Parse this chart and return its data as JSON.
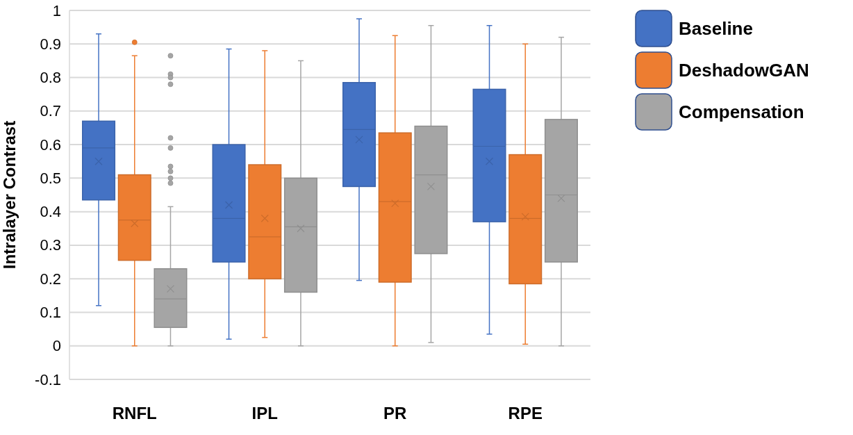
{
  "chart_data": {
    "type": "box",
    "ylabel": "Intralayer Contrast",
    "categories": [
      "RNFL",
      "IPL",
      "PR",
      "RPE"
    ],
    "ylim": [
      -0.1,
      1
    ],
    "yticks": [
      -0.1,
      0,
      0.1,
      0.2,
      0.3,
      0.4,
      0.5,
      0.6,
      0.7,
      0.8,
      0.9,
      1
    ],
    "grid": "y",
    "legend": "right",
    "series": [
      {
        "name": "Baseline",
        "color": "#4472c4",
        "boxes": [
          {
            "low": 0.12,
            "q1": 0.435,
            "median": 0.59,
            "q3": 0.67,
            "high": 0.93,
            "mean": 0.55
          },
          {
            "low": 0.02,
            "q1": 0.25,
            "median": 0.38,
            "q3": 0.6,
            "high": 0.885,
            "mean": 0.42
          },
          {
            "low": 0.195,
            "q1": 0.475,
            "median": 0.645,
            "q3": 0.785,
            "high": 0.975,
            "mean": 0.615
          },
          {
            "low": 0.035,
            "q1": 0.37,
            "median": 0.595,
            "q3": 0.765,
            "high": 0.955,
            "mean": 0.55
          }
        ]
      },
      {
        "name": "DeshadowGAN",
        "color": "#ed7d31",
        "boxes": [
          {
            "low": 0,
            "q1": 0.255,
            "median": 0.375,
            "q3": 0.51,
            "high": 0.865,
            "mean": 0.365,
            "outliers": [
              0.905
            ]
          },
          {
            "low": 0.025,
            "q1": 0.2,
            "median": 0.325,
            "q3": 0.54,
            "high": 0.88,
            "mean": 0.38
          },
          {
            "low": 0,
            "q1": 0.19,
            "median": 0.43,
            "q3": 0.635,
            "high": 0.925,
            "mean": 0.425
          },
          {
            "low": 0.005,
            "q1": 0.185,
            "median": 0.38,
            "q3": 0.57,
            "high": 0.9,
            "mean": 0.385
          }
        ]
      },
      {
        "name": "Compensation",
        "color": "#a5a5a5",
        "boxes": [
          {
            "low": 0,
            "q1": 0.055,
            "median": 0.14,
            "q3": 0.23,
            "high": 0.415,
            "mean": 0.17,
            "outliers": [
              0.865,
              0.81,
              0.8,
              0.78,
              0.62,
              0.59,
              0.535,
              0.52,
              0.5,
              0.485
            ]
          },
          {
            "low": 0,
            "q1": 0.16,
            "median": 0.355,
            "q3": 0.5,
            "high": 0.85,
            "mean": 0.35
          },
          {
            "low": 0.01,
            "q1": 0.275,
            "median": 0.51,
            "q3": 0.655,
            "high": 0.955,
            "mean": 0.475
          },
          {
            "low": 0,
            "q1": 0.25,
            "median": 0.45,
            "q3": 0.675,
            "high": 0.92,
            "mean": 0.44
          }
        ]
      }
    ]
  }
}
